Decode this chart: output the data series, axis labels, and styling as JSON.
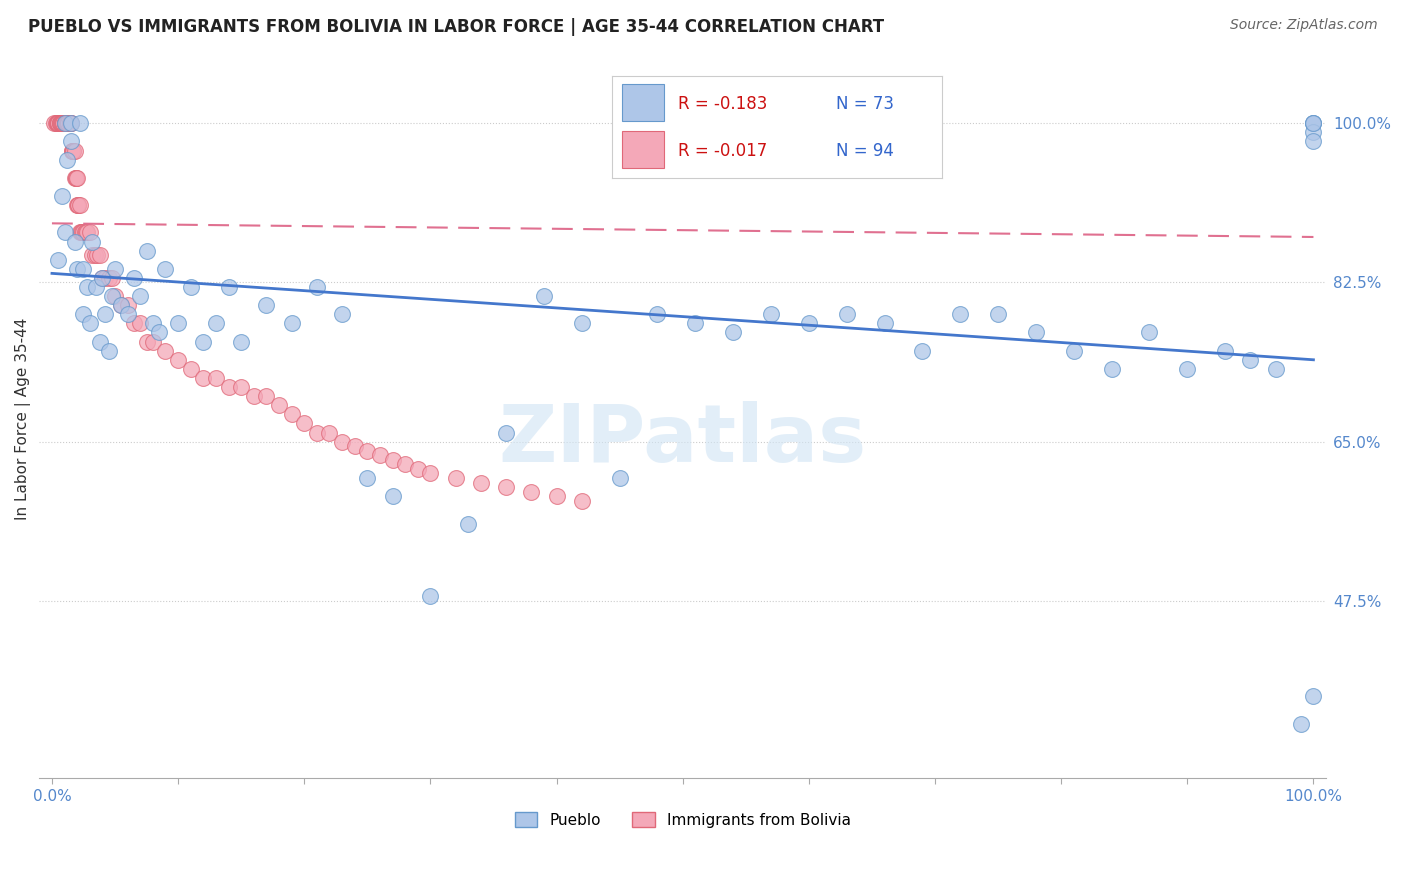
{
  "title": "PUEBLO VS IMMIGRANTS FROM BOLIVIA IN LABOR FORCE | AGE 35-44 CORRELATION CHART",
  "source": "Source: ZipAtlas.com",
  "ylabel": "In Labor Force | Age 35-44",
  "pueblo_color": "#aec6e8",
  "pueblo_edge": "#6699cc",
  "bolivia_color": "#f4a8b8",
  "bolivia_edge": "#e06878",
  "trend_pueblo_color": "#4477cc",
  "trend_bolivia_color": "#e07090",
  "legend_R_pueblo": "R = -0.183",
  "legend_N_pueblo": "N = 73",
  "legend_R_bolivia": "R = -0.017",
  "legend_N_bolivia": "N = 94",
  "ytick_labels": [
    "100.0%",
    "82.5%",
    "65.0%",
    "47.5%"
  ],
  "ytick_vals": [
    1.0,
    0.825,
    0.65,
    0.475
  ],
  "pueblo_x": [
    0.005,
    0.008,
    0.01,
    0.01,
    0.012,
    0.015,
    0.015,
    0.018,
    0.02,
    0.022,
    0.025,
    0.025,
    0.028,
    0.03,
    0.032,
    0.035,
    0.038,
    0.04,
    0.042,
    0.045,
    0.048,
    0.05,
    0.055,
    0.06,
    0.065,
    0.07,
    0.075,
    0.08,
    0.085,
    0.09,
    0.1,
    0.11,
    0.12,
    0.13,
    0.14,
    0.15,
    0.17,
    0.19,
    0.21,
    0.23,
    0.25,
    0.27,
    0.3,
    0.33,
    0.36,
    0.39,
    0.42,
    0.45,
    0.48,
    0.51,
    0.54,
    0.57,
    0.6,
    0.63,
    0.66,
    0.69,
    0.72,
    0.75,
    0.78,
    0.81,
    0.84,
    0.87,
    0.9,
    0.93,
    0.95,
    0.97,
    0.99,
    1.0,
    1.0,
    1.0,
    1.0,
    1.0,
    1.0
  ],
  "pueblo_y": [
    0.85,
    0.92,
    0.88,
    1.0,
    0.96,
    1.0,
    0.98,
    0.87,
    0.84,
    1.0,
    0.79,
    0.84,
    0.82,
    0.78,
    0.87,
    0.82,
    0.76,
    0.83,
    0.79,
    0.75,
    0.81,
    0.84,
    0.8,
    0.79,
    0.83,
    0.81,
    0.86,
    0.78,
    0.77,
    0.84,
    0.78,
    0.82,
    0.76,
    0.78,
    0.82,
    0.76,
    0.8,
    0.78,
    0.82,
    0.79,
    0.61,
    0.59,
    0.48,
    0.56,
    0.66,
    0.81,
    0.78,
    0.61,
    0.79,
    0.78,
    0.77,
    0.79,
    0.78,
    0.79,
    0.78,
    0.75,
    0.79,
    0.79,
    0.77,
    0.75,
    0.73,
    0.77,
    0.73,
    0.75,
    0.74,
    0.73,
    0.34,
    0.37,
    1.0,
    1.0,
    0.99,
    0.98,
    1.0
  ],
  "bolivia_x": [
    0.002,
    0.003,
    0.004,
    0.004,
    0.005,
    0.005,
    0.005,
    0.006,
    0.006,
    0.006,
    0.007,
    0.007,
    0.008,
    0.008,
    0.009,
    0.009,
    0.01,
    0.01,
    0.01,
    0.01,
    0.011,
    0.011,
    0.012,
    0.012,
    0.013,
    0.013,
    0.014,
    0.014,
    0.015,
    0.015,
    0.016,
    0.016,
    0.017,
    0.017,
    0.018,
    0.018,
    0.019,
    0.019,
    0.02,
    0.02,
    0.021,
    0.021,
    0.022,
    0.022,
    0.023,
    0.024,
    0.025,
    0.026,
    0.027,
    0.028,
    0.03,
    0.032,
    0.034,
    0.036,
    0.038,
    0.04,
    0.042,
    0.045,
    0.048,
    0.05,
    0.055,
    0.06,
    0.065,
    0.07,
    0.075,
    0.08,
    0.09,
    0.1,
    0.11,
    0.12,
    0.13,
    0.14,
    0.15,
    0.16,
    0.17,
    0.18,
    0.19,
    0.2,
    0.21,
    0.22,
    0.23,
    0.24,
    0.25,
    0.26,
    0.27,
    0.28,
    0.29,
    0.3,
    0.32,
    0.34,
    0.36,
    0.38,
    0.4,
    0.42
  ],
  "bolivia_y": [
    1.0,
    1.0,
    1.0,
    1.0,
    1.0,
    1.0,
    1.0,
    1.0,
    1.0,
    1.0,
    1.0,
    1.0,
    1.0,
    1.0,
    1.0,
    1.0,
    1.0,
    1.0,
    1.0,
    1.0,
    1.0,
    1.0,
    1.0,
    1.0,
    1.0,
    1.0,
    1.0,
    1.0,
    1.0,
    1.0,
    0.97,
    0.97,
    0.97,
    0.97,
    0.97,
    0.94,
    0.94,
    0.94,
    0.94,
    0.91,
    0.91,
    0.91,
    0.91,
    0.88,
    0.88,
    0.88,
    0.88,
    0.88,
    0.88,
    0.88,
    0.88,
    0.855,
    0.855,
    0.855,
    0.855,
    0.83,
    0.83,
    0.83,
    0.83,
    0.81,
    0.8,
    0.8,
    0.78,
    0.78,
    0.76,
    0.76,
    0.75,
    0.74,
    0.73,
    0.72,
    0.72,
    0.71,
    0.71,
    0.7,
    0.7,
    0.69,
    0.68,
    0.67,
    0.66,
    0.66,
    0.65,
    0.645,
    0.64,
    0.635,
    0.63,
    0.625,
    0.62,
    0.615,
    0.61,
    0.605,
    0.6,
    0.595,
    0.59,
    0.585
  ],
  "pueblo_trend_x": [
    0.0,
    1.0
  ],
  "pueblo_trend_y": [
    0.835,
    0.74
  ],
  "bolivia_trend_x": [
    0.0,
    1.0
  ],
  "bolivia_trend_y": [
    0.89,
    0.875
  ],
  "xlim": [
    0.0,
    1.0
  ],
  "ylim": [
    0.28,
    1.07
  ],
  "watermark_text": "ZIPatlas",
  "background_color": "#ffffff"
}
